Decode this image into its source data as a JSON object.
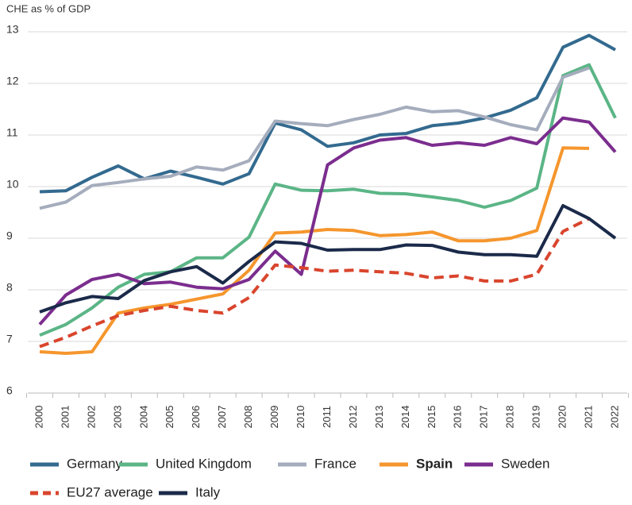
{
  "chart_data": {
    "type": "line",
    "y_axis_label": "CHE as % of GDP",
    "categories": [
      "2000",
      "2001",
      "2002",
      "2003",
      "2004",
      "2005",
      "2006",
      "2007",
      "2008",
      "2009",
      "2010",
      "2011",
      "2012",
      "2013",
      "2014",
      "2015",
      "2016",
      "2017",
      "2018",
      "2019",
      "2020",
      "2021",
      "2022"
    ],
    "ylim": [
      6,
      13
    ],
    "yticks": [
      6,
      7,
      8,
      9,
      10,
      11,
      12,
      13
    ],
    "grid": true,
    "series": [
      {
        "name": "Germany",
        "color": "#336a8f",
        "values": [
          9.9,
          9.92,
          10.18,
          10.4,
          10.15,
          10.3,
          10.18,
          10.05,
          10.25,
          11.23,
          11.1,
          10.78,
          10.85,
          11.0,
          11.03,
          11.18,
          11.23,
          11.33,
          11.48,
          11.72,
          12.7,
          12.93,
          12.65
        ]
      },
      {
        "name": "United Kingdom",
        "color": "#5bb586",
        "values": [
          7.12,
          7.33,
          7.65,
          8.05,
          8.3,
          8.35,
          8.62,
          8.62,
          9.02,
          10.05,
          9.93,
          9.92,
          9.95,
          9.87,
          9.86,
          9.8,
          9.73,
          9.6,
          9.73,
          9.97,
          12.15,
          12.36,
          11.33
        ]
      },
      {
        "name": "France",
        "color": "#a5adbd",
        "values": [
          9.58,
          9.7,
          10.02,
          10.08,
          10.15,
          10.2,
          10.38,
          10.32,
          10.5,
          11.27,
          11.22,
          11.18,
          11.3,
          11.4,
          11.54,
          11.45,
          11.47,
          11.35,
          11.2,
          11.1,
          12.12,
          12.3,
          null
        ]
      },
      {
        "name": "Spain",
        "color": "#f5962d",
        "bold": true,
        "values": [
          6.8,
          6.77,
          6.8,
          7.55,
          7.65,
          7.72,
          7.82,
          7.92,
          8.38,
          9.1,
          9.12,
          9.17,
          9.15,
          9.05,
          9.07,
          9.12,
          8.95,
          8.95,
          9.0,
          9.15,
          10.75,
          10.74,
          null
        ]
      },
      {
        "name": "Sweden",
        "color": "#7b2d8e",
        "values": [
          7.33,
          7.9,
          8.2,
          8.3,
          8.12,
          8.15,
          8.05,
          8.02,
          8.2,
          8.75,
          8.3,
          10.42,
          10.75,
          10.9,
          10.95,
          10.8,
          10.85,
          10.8,
          10.95,
          10.83,
          11.33,
          11.25,
          10.67
        ]
      },
      {
        "name": "EU27 average",
        "color": "#d9452d",
        "dashed": true,
        "values": [
          6.9,
          7.08,
          7.3,
          7.5,
          7.6,
          7.68,
          7.6,
          7.55,
          7.85,
          8.48,
          8.43,
          8.36,
          8.38,
          8.35,
          8.32,
          8.23,
          8.27,
          8.17,
          8.17,
          8.3,
          9.13,
          9.38,
          null
        ]
      },
      {
        "name": "Italy",
        "color": "#1b2a4a",
        "values": [
          7.57,
          7.75,
          7.87,
          7.83,
          8.18,
          8.35,
          8.45,
          8.13,
          8.55,
          8.93,
          8.9,
          8.77,
          8.78,
          8.78,
          8.87,
          8.86,
          8.73,
          8.68,
          8.68,
          8.65,
          9.63,
          9.38,
          9.0
        ]
      }
    ]
  }
}
